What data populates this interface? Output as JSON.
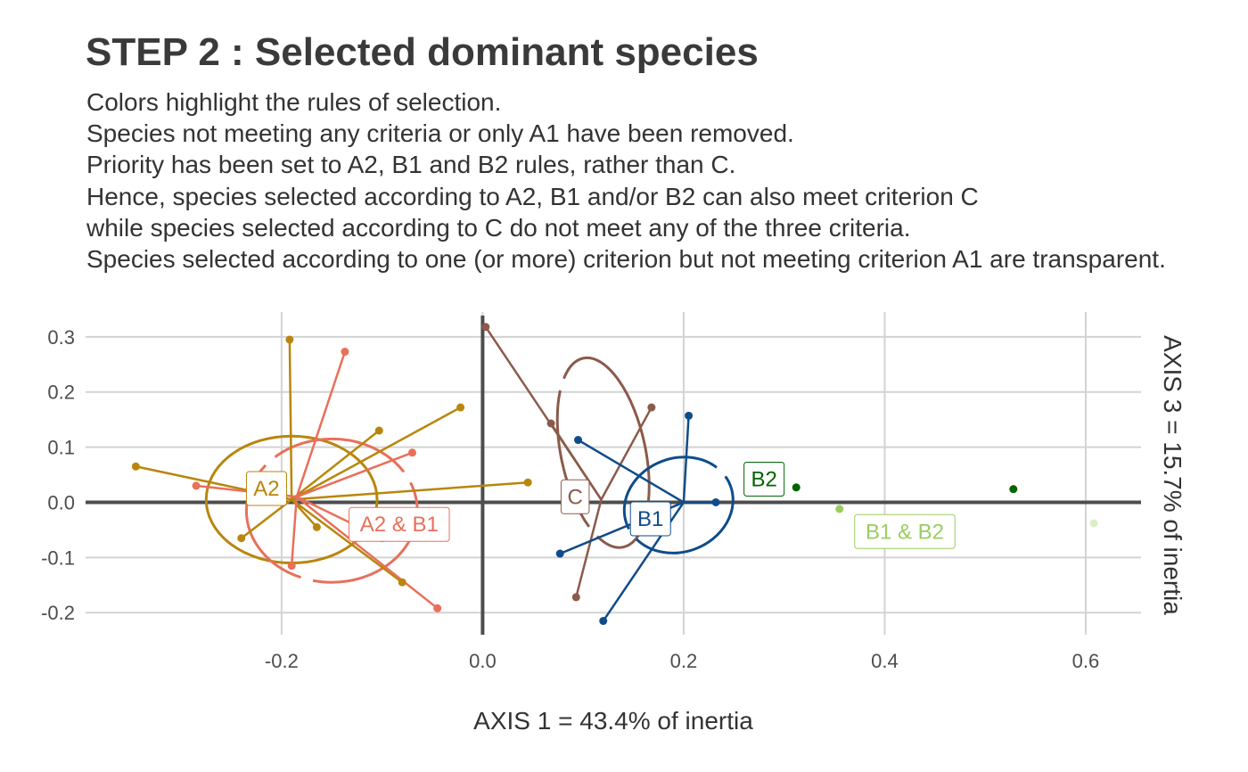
{
  "title": "STEP 2 : Selected dominant species",
  "subtitle_lines": [
    "Colors highlight the rules of selection.",
    "Species not meeting any criteria or only A1 have been removed.",
    "Priority has been set to A2, B1 and B2 rules, rather than C.",
    "Hence, species selected according to A2, B1 and/or B2 can also meet criterion C",
    "while species selected according to C do not meet any of the three criteria.",
    "Species selected according to one (or more) criterion but not meeting criterion A1 are transparent."
  ],
  "chart_data": {
    "type": "scatter",
    "xlabel": "AXIS 1 = 43.4% of inertia",
    "ylabel": "AXIS 3 = 15.7% of inertia",
    "xlim": [
      -0.395,
      0.655
    ],
    "ylim": [
      -0.24,
      0.345
    ],
    "x_ticks": [
      -0.2,
      0.0,
      0.2,
      0.4,
      0.6
    ],
    "x_tick_labels": [
      "-0.2",
      "0.0",
      "0.2",
      "0.4",
      "0.6"
    ],
    "y_ticks": [
      -0.2,
      -0.1,
      0.0,
      0.1,
      0.2,
      0.3
    ],
    "y_tick_labels": [
      "-0.2",
      "-0.1",
      "0.0",
      "0.1",
      "0.2",
      "0.3"
    ],
    "grid": true,
    "zero_lines": true,
    "legend": "none",
    "groups": [
      {
        "name": "A2",
        "color": "#B8860B",
        "center": [
          -0.19,
          0.005
        ],
        "label_pos": [
          -0.215,
          0.025
        ],
        "ellipse": {
          "cx": -0.19,
          "cy": 0.005,
          "rx": 0.085,
          "ry": 0.115,
          "angle": 0,
          "dashed": false
        },
        "points": [
          [
            -0.345,
            0.065
          ],
          [
            -0.192,
            0.295
          ],
          [
            -0.022,
            0.172
          ],
          [
            -0.103,
            0.13
          ],
          [
            0.045,
            0.036
          ],
          [
            -0.24,
            -0.065
          ],
          [
            -0.165,
            -0.045
          ],
          [
            -0.08,
            -0.145
          ]
        ]
      },
      {
        "name": "A2 & B1",
        "color": "#E8705A",
        "center": [
          -0.185,
          0.01
        ],
        "label_pos": [
          -0.083,
          -0.04
        ],
        "ellipse": {
          "cx": -0.15,
          "cy": -0.015,
          "rx": 0.085,
          "ry": 0.13,
          "angle": 0,
          "dashed": true
        },
        "points": [
          [
            -0.285,
            0.03
          ],
          [
            -0.137,
            0.273
          ],
          [
            -0.07,
            0.09
          ],
          [
            -0.19,
            -0.115
          ],
          [
            -0.1,
            -0.065
          ],
          [
            -0.045,
            -0.192
          ]
        ]
      },
      {
        "name": "C",
        "color": "#8B5A4A",
        "center": [
          0.118,
          0.005
        ],
        "label_pos": [
          0.092,
          0.01
        ],
        "ellipse": {
          "cx": 0.12,
          "cy": 0.09,
          "rx": 0.042,
          "ry": 0.175,
          "angle": 12,
          "dashed": true
        },
        "points": [
          [
            0.003,
            0.318
          ],
          [
            0.068,
            0.143
          ],
          [
            0.168,
            0.172
          ],
          [
            0.093,
            -0.172
          ]
        ]
      },
      {
        "name": "B1",
        "color": "#0F4C8A",
        "center": [
          0.2,
          0.0
        ],
        "label_pos": [
          0.167,
          -0.03
        ],
        "ellipse": {
          "cx": 0.195,
          "cy": -0.005,
          "rx": 0.055,
          "ry": 0.085,
          "angle": 20,
          "dashed": true
        },
        "points": [
          [
            0.205,
            0.157
          ],
          [
            0.095,
            0.113
          ],
          [
            0.232,
            0.0
          ],
          [
            0.077,
            -0.093
          ],
          [
            0.12,
            -0.215
          ]
        ]
      },
      {
        "name": "B2",
        "color": "#006400",
        "label_pos": [
          0.28,
          0.042
        ],
        "points": [
          [
            0.312,
            0.027
          ],
          [
            0.528,
            0.024
          ]
        ]
      },
      {
        "name": "B1 & B2",
        "color": "#9ACD61",
        "label_pos": [
          0.42,
          -0.053
        ],
        "points": [
          [
            0.355,
            -0.012
          ],
          [
            0.608,
            -0.038
          ]
        ],
        "transparent_points": [
          1
        ]
      }
    ]
  }
}
